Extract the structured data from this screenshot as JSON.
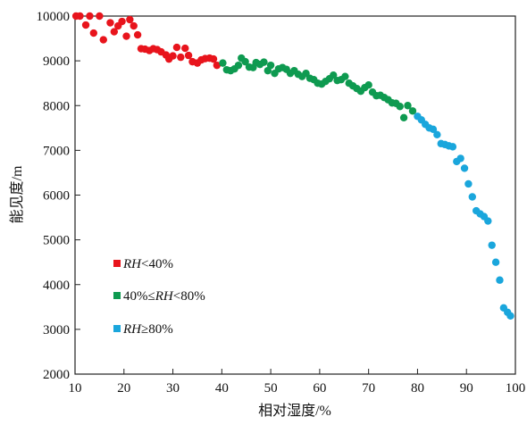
{
  "chart_data": {
    "type": "scatter",
    "xlabel": "相对湿度/%",
    "ylabel": "能见度/m",
    "xlim": [
      10,
      100
    ],
    "ylim": [
      2000,
      10000
    ],
    "xticks": [
      10,
      20,
      30,
      40,
      50,
      60,
      70,
      80,
      90,
      100
    ],
    "yticks": [
      2000,
      3000,
      4000,
      5000,
      6000,
      7000,
      8000,
      9000,
      10000
    ],
    "legend_position": "lower-left",
    "series": [
      {
        "name": "RH<40%",
        "label_parts": [
          "RH",
          "<40%"
        ],
        "color": "#e8141c",
        "points": [
          [
            10.2,
            10000
          ],
          [
            11.0,
            10000
          ],
          [
            12.2,
            9800
          ],
          [
            13.0,
            10000
          ],
          [
            13.8,
            9620
          ],
          [
            15.0,
            10000
          ],
          [
            15.8,
            9470
          ],
          [
            17.2,
            9850
          ],
          [
            18.0,
            9650
          ],
          [
            18.8,
            9780
          ],
          [
            19.6,
            9880
          ],
          [
            20.5,
            9550
          ],
          [
            21.2,
            9920
          ],
          [
            22.0,
            9780
          ],
          [
            22.8,
            9580
          ],
          [
            23.5,
            9270
          ],
          [
            24.3,
            9260
          ],
          [
            25.2,
            9230
          ],
          [
            26.0,
            9270
          ],
          [
            26.8,
            9250
          ],
          [
            27.6,
            9200
          ],
          [
            28.6,
            9130
          ],
          [
            29.2,
            9040
          ],
          [
            30.0,
            9110
          ],
          [
            30.8,
            9300
          ],
          [
            31.6,
            9080
          ],
          [
            32.5,
            9280
          ],
          [
            33.2,
            9120
          ],
          [
            34.0,
            8980
          ],
          [
            35.0,
            8950
          ],
          [
            35.8,
            9020
          ],
          [
            36.6,
            9050
          ],
          [
            37.5,
            9060
          ],
          [
            38.3,
            9040
          ],
          [
            39.0,
            8900
          ]
        ]
      },
      {
        "name": "40%≤RH<80%",
        "label_parts": [
          "40%≤",
          "RH",
          "<80%"
        ],
        "color": "#0e9a50",
        "points": [
          [
            40.2,
            8950
          ],
          [
            41.0,
            8800
          ],
          [
            41.8,
            8780
          ],
          [
            42.6,
            8820
          ],
          [
            43.4,
            8900
          ],
          [
            44.0,
            9060
          ],
          [
            44.8,
            8980
          ],
          [
            45.6,
            8860
          ],
          [
            46.4,
            8850
          ],
          [
            47.0,
            8960
          ],
          [
            47.8,
            8920
          ],
          [
            48.6,
            8970
          ],
          [
            49.4,
            8780
          ],
          [
            50.0,
            8900
          ],
          [
            50.8,
            8720
          ],
          [
            51.6,
            8820
          ],
          [
            52.4,
            8850
          ],
          [
            53.2,
            8810
          ],
          [
            54.0,
            8720
          ],
          [
            54.8,
            8780
          ],
          [
            55.6,
            8700
          ],
          [
            56.4,
            8650
          ],
          [
            57.2,
            8720
          ],
          [
            58.0,
            8610
          ],
          [
            58.8,
            8580
          ],
          [
            59.6,
            8500
          ],
          [
            60.4,
            8480
          ],
          [
            61.2,
            8540
          ],
          [
            62.0,
            8600
          ],
          [
            62.8,
            8680
          ],
          [
            63.6,
            8560
          ],
          [
            64.4,
            8580
          ],
          [
            65.2,
            8650
          ],
          [
            66.0,
            8500
          ],
          [
            66.8,
            8440
          ],
          [
            67.6,
            8380
          ],
          [
            68.4,
            8320
          ],
          [
            69.2,
            8400
          ],
          [
            70.0,
            8460
          ],
          [
            70.8,
            8300
          ],
          [
            71.6,
            8220
          ],
          [
            72.4,
            8230
          ],
          [
            73.2,
            8180
          ],
          [
            74.0,
            8130
          ],
          [
            74.8,
            8060
          ],
          [
            75.6,
            8050
          ],
          [
            76.4,
            7980
          ],
          [
            77.2,
            7730
          ],
          [
            78.0,
            8000
          ],
          [
            79.0,
            7880
          ]
        ]
      },
      {
        "name": "RH≥80%",
        "label_parts": [
          "RH",
          "≥80%"
        ],
        "color": "#1aa6dc",
        "points": [
          [
            80.0,
            7760
          ],
          [
            80.8,
            7680
          ],
          [
            81.6,
            7580
          ],
          [
            82.4,
            7500
          ],
          [
            83.2,
            7470
          ],
          [
            84.0,
            7350
          ],
          [
            84.8,
            7150
          ],
          [
            85.6,
            7130
          ],
          [
            86.4,
            7100
          ],
          [
            87.2,
            7080
          ],
          [
            88.0,
            6750
          ],
          [
            88.8,
            6820
          ],
          [
            89.6,
            6600
          ],
          [
            90.4,
            6250
          ],
          [
            91.2,
            5960
          ],
          [
            92.0,
            5650
          ],
          [
            92.8,
            5580
          ],
          [
            93.6,
            5520
          ],
          [
            94.4,
            5420
          ],
          [
            95.2,
            4880
          ],
          [
            96.0,
            4500
          ],
          [
            96.8,
            4100
          ],
          [
            97.6,
            3480
          ],
          [
            98.4,
            3380
          ],
          [
            99.0,
            3300
          ]
        ]
      }
    ]
  }
}
